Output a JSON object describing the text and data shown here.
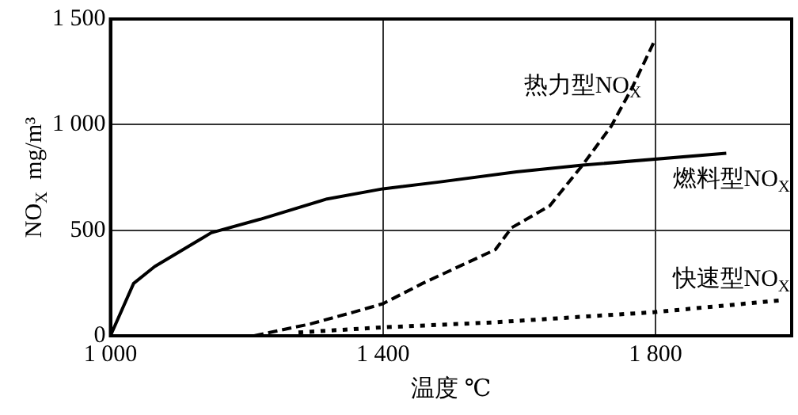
{
  "chart_data": {
    "type": "line",
    "xlabel": "温度 ℃",
    "ylabel": "NO$_{X}$  mg/m³",
    "xlim": [
      1000,
      2000
    ],
    "xticks": [
      {
        "value": 1000,
        "label": "1 000"
      },
      {
        "value": 1400,
        "label": "1 400"
      },
      {
        "value": 1800,
        "label": "1 800"
      }
    ],
    "ylim": [
      0,
      1500
    ],
    "yticks": [
      0,
      500,
      {
        "value": 1000,
        "label": "1 000"
      },
      {
        "value": 1500,
        "label": "1 500"
      }
    ],
    "grid": true,
    "legend": false,
    "marker": "none",
    "series": [
      {
        "name": "燃料型NO$_{X}$",
        "color": "#000000",
        "line_style": "solid",
        "x": [
          1000,
          1034,
          1065,
          1148,
          1220,
          1318,
          1400,
          1482,
          1596,
          1693,
          1904
        ],
        "values": [
          0,
          248,
          328,
          488,
          552,
          648,
          696,
          728,
          776,
          808,
          864
        ]
      },
      {
        "name": "热力型NO$_{X}$",
        "color": "#000000",
        "line_style": "dashed",
        "x": [
          1211,
          1293,
          1357,
          1400,
          1458,
          1565,
          1589,
          1645,
          1693,
          1735,
          1766,
          1798
        ],
        "values": [
          0,
          56,
          112,
          152,
          248,
          408,
          512,
          616,
          808,
          992,
          1176,
          1392
        ]
      },
      {
        "name": "快速型NO$_{X}$",
        "color": "#000000",
        "line_style": "dotted",
        "x": [
          1276,
          1400,
          1565,
          1798,
          1984
        ],
        "values": [
          16,
          40,
          64,
          112,
          168
        ]
      }
    ]
  }
}
